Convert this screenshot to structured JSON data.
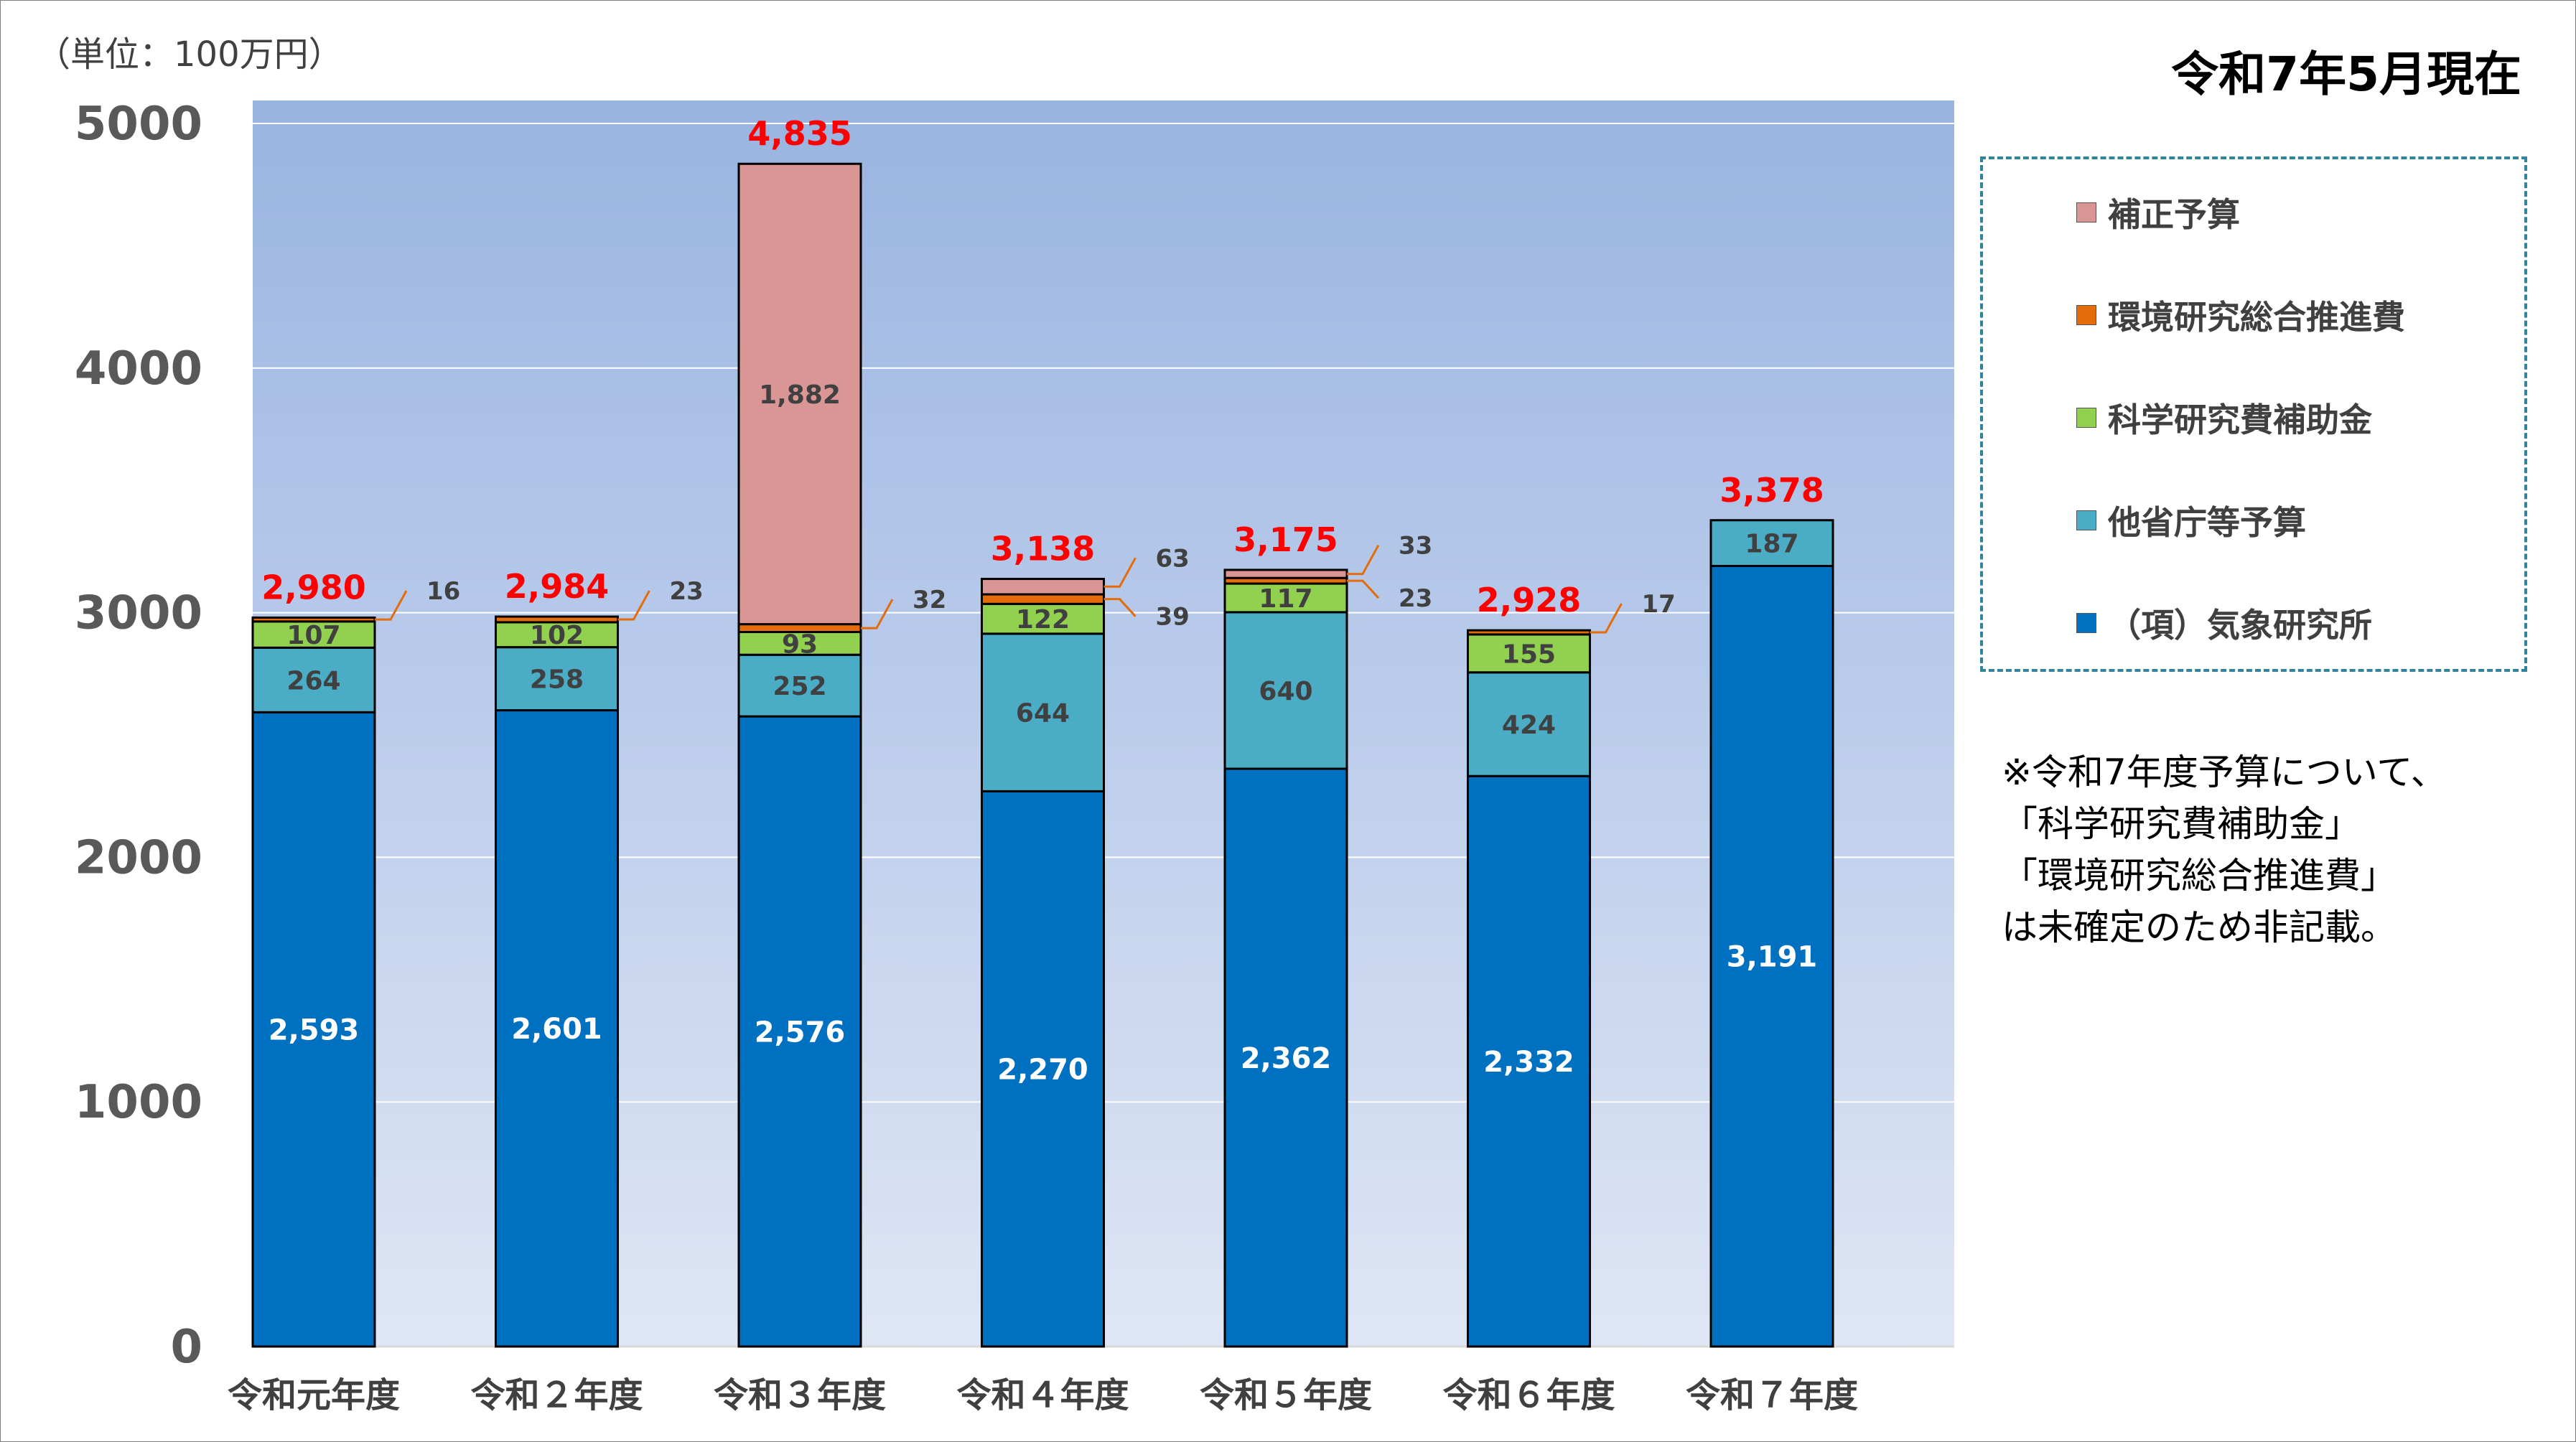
{
  "header": {
    "unit": "（単位：100万円）",
    "as_of": "令和7年5月現在"
  },
  "colors": {
    "plot_top": "#99b4e1",
    "plot_bottom": "#dfe6f5",
    "series": [
      "#0070c0",
      "#4bacc6",
      "#92d050",
      "#e46c0a",
      "#da9694"
    ],
    "total_label": "#ff0000"
  },
  "chart_data": {
    "type": "bar",
    "stacked": true,
    "categories": [
      "令和元年度",
      "令和2年度",
      "令和3年度",
      "令和4年度",
      "令和5年度",
      "令和6年度",
      "令和7年度"
    ],
    "category_labels": [
      "令和元年度",
      "令和２年度",
      "令和３年度",
      "令和４年度",
      "令和５年度",
      "令和６年度",
      "令和７年度"
    ],
    "series": [
      {
        "name": "（項）気象研究所",
        "values": [
          2593,
          2601,
          2576,
          2270,
          2362,
          2332,
          3191
        ],
        "labels": [
          "2,593",
          "2,601",
          "2,576",
          "2,270",
          "2,362",
          "2,332",
          "3,191"
        ]
      },
      {
        "name": "他省庁等予算",
        "values": [
          264,
          258,
          252,
          644,
          640,
          424,
          187
        ],
        "labels": [
          "264",
          "258",
          "252",
          "644",
          "640",
          "424",
          "187"
        ]
      },
      {
        "name": "科学研究費補助金",
        "values": [
          107,
          102,
          93,
          122,
          117,
          155,
          null
        ],
        "labels": [
          "107",
          "102",
          "93",
          "122",
          "117",
          "155",
          ""
        ]
      },
      {
        "name": "環境研究総合推進費",
        "values": [
          16,
          23,
          32,
          39,
          23,
          17,
          null
        ],
        "labels": [
          "16",
          "23",
          "32",
          "39",
          "23",
          "17",
          ""
        ]
      },
      {
        "name": "補正予算",
        "values": [
          null,
          null,
          1882,
          63,
          33,
          null,
          null
        ],
        "labels": [
          "",
          "",
          "1,882",
          "63",
          "33",
          "",
          ""
        ]
      }
    ],
    "totals": [
      2980,
      2984,
      4835,
      3138,
      3175,
      2928,
      3378
    ],
    "total_labels": [
      "2,980",
      "2,984",
      "4,835",
      "3,138",
      "3,175",
      "2,928",
      "3,378"
    ],
    "ylim": [
      0,
      5000
    ],
    "yticks": [
      0,
      1000,
      2000,
      3000,
      4000,
      5000
    ],
    "ytick_labels": [
      "0",
      "1000",
      "2000",
      "3000",
      "4000",
      "5000"
    ],
    "grid": true,
    "legend_position": "right",
    "legend_order": [
      "補正予算",
      "環境研究総合推進費",
      "科学研究費補助金",
      "他省庁等予算",
      "（項）気象研究所"
    ]
  },
  "note_lines": [
    "※令和7年度予算について、",
    "「科学研究費補助金」",
    "「環境研究総合推進費」",
    "は未確定のため非記載。"
  ]
}
